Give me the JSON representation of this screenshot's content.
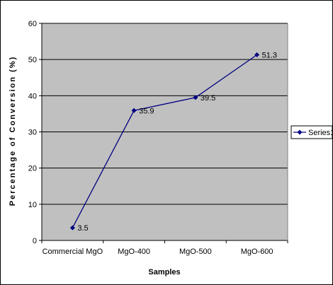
{
  "chart_data": {
    "type": "line",
    "categories": [
      "Commercial MgO",
      "MgO-400",
      "MgO-500",
      "MgO-600"
    ],
    "series": [
      {
        "name": "Series1",
        "values": [
          3.5,
          35.9,
          39.5,
          51.3
        ]
      }
    ],
    "data_labels": [
      "3.5",
      "35.9",
      "39.5",
      "51.3"
    ],
    "xlabel": "Samples",
    "ylabel": "Percentage of Conversion (%)",
    "ylim": [
      0,
      60
    ],
    "yticks": [
      0,
      10,
      20,
      30,
      40,
      50,
      60
    ],
    "grid": "horizontal",
    "legend": "right",
    "colors": {
      "plot_background": "#c0c0c0",
      "series_line": "#000080",
      "gridline": "#000000",
      "frame": "#000000"
    }
  }
}
